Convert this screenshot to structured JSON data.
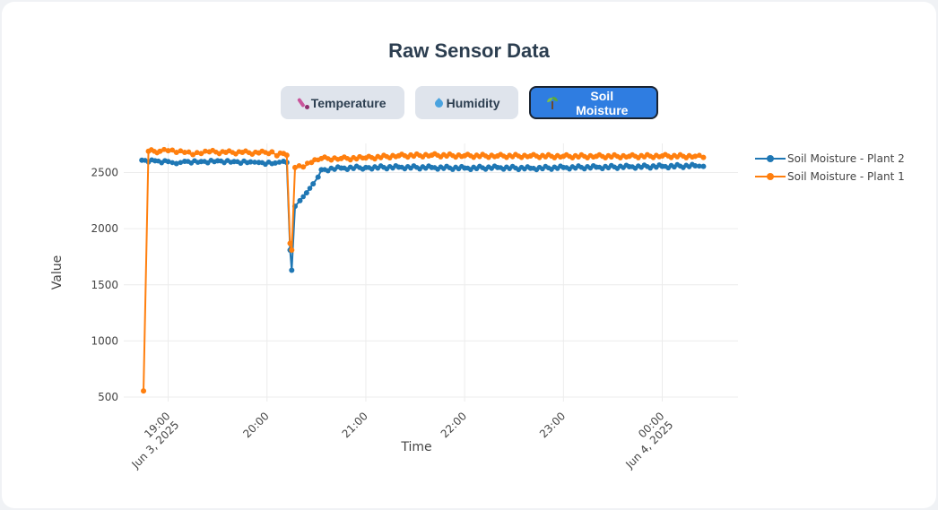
{
  "page": {
    "title": "Raw Sensor Data"
  },
  "tabs": [
    {
      "label": "Temperature",
      "icon": "thermometer-icon",
      "active": false
    },
    {
      "label": "Humidity",
      "icon": "droplet-icon",
      "active": false
    },
    {
      "label": "Soil Moisture",
      "icon": "seedling-icon",
      "active": true
    }
  ],
  "chart_data": {
    "type": "line",
    "title": "",
    "xlabel": "Time",
    "ylabel": "Value",
    "ylim": [
      460,
      2760
    ],
    "xlim": [
      "2025-06-03 18:33",
      "2025-06-04 00:46"
    ],
    "grid": true,
    "legend_position": "right",
    "y_ticks": [
      500,
      1000,
      1500,
      2000,
      2500
    ],
    "x_ticks": [
      {
        "time": "2025-06-03 19:00",
        "label": "19:00",
        "sublabel": "Jun 3, 2025"
      },
      {
        "time": "2025-06-03 20:00",
        "label": "20:00",
        "sublabel": ""
      },
      {
        "time": "2025-06-03 21:00",
        "label": "21:00",
        "sublabel": ""
      },
      {
        "time": "2025-06-03 22:00",
        "label": "22:00",
        "sublabel": ""
      },
      {
        "time": "2025-06-03 23:00",
        "label": "23:00",
        "sublabel": ""
      },
      {
        "time": "2025-06-04 00:00",
        "label": "00:00",
        "sublabel": "Jun 4, 2025"
      }
    ],
    "series": [
      {
        "name": "Soil Moisture - Plant 2",
        "color": "#1f77b4",
        "points": [
          [
            "2025-06-03 18:44",
            2610
          ],
          [
            "2025-06-03 18:52",
            2605
          ],
          [
            "2025-06-03 19:00",
            2598
          ],
          [
            "2025-06-03 19:05",
            2580
          ],
          [
            "2025-06-03 19:10",
            2600
          ],
          [
            "2025-06-03 19:20",
            2598
          ],
          [
            "2025-06-03 19:30",
            2605
          ],
          [
            "2025-06-03 19:40",
            2598
          ],
          [
            "2025-06-03 19:50",
            2595
          ],
          [
            "2025-06-03 19:55",
            2590
          ],
          [
            "2025-06-03 20:05",
            2585
          ],
          [
            "2025-06-03 20:10",
            2600
          ],
          [
            "2025-06-03 20:12",
            2590
          ],
          [
            "2025-06-03 20:14",
            1810
          ],
          [
            "2025-06-03 20:15",
            1630
          ],
          [
            "2025-06-03 20:17",
            2200
          ],
          [
            "2025-06-03 20:20",
            2250
          ],
          [
            "2025-06-03 20:24",
            2320
          ],
          [
            "2025-06-03 20:28",
            2400
          ],
          [
            "2025-06-03 20:31",
            2460
          ],
          [
            "2025-06-03 20:33",
            2525
          ],
          [
            "2025-06-03 20:45",
            2540
          ],
          [
            "2025-06-03 21:00",
            2545
          ],
          [
            "2025-06-03 21:20",
            2548
          ],
          [
            "2025-06-03 21:40",
            2545
          ],
          [
            "2025-06-03 22:00",
            2540
          ],
          [
            "2025-06-03 22:20",
            2545
          ],
          [
            "2025-06-03 22:40",
            2538
          ],
          [
            "2025-06-03 23:00",
            2545
          ],
          [
            "2025-06-03 23:20",
            2548
          ],
          [
            "2025-06-03 23:40",
            2552
          ],
          [
            "2025-06-04 00:00",
            2555
          ],
          [
            "2025-06-04 00:20",
            2560
          ],
          [
            "2025-06-04 00:25",
            2555
          ]
        ]
      },
      {
        "name": "Soil Moisture - Plant 1",
        "color": "#ff7f0e",
        "points": [
          [
            "2025-06-03 18:45",
            555
          ],
          [
            "2025-06-03 18:48",
            2690
          ],
          [
            "2025-06-03 18:55",
            2690
          ],
          [
            "2025-06-03 19:00",
            2695
          ],
          [
            "2025-06-03 19:05",
            2680
          ],
          [
            "2025-06-03 19:10",
            2680
          ],
          [
            "2025-06-03 19:15",
            2660
          ],
          [
            "2025-06-03 19:20",
            2670
          ],
          [
            "2025-06-03 19:25",
            2685
          ],
          [
            "2025-06-03 19:35",
            2680
          ],
          [
            "2025-06-03 19:45",
            2680
          ],
          [
            "2025-06-03 19:55",
            2675
          ],
          [
            "2025-06-03 20:03",
            2685
          ],
          [
            "2025-06-03 20:06",
            2650
          ],
          [
            "2025-06-03 20:10",
            2670
          ],
          [
            "2025-06-03 20:12",
            2655
          ],
          [
            "2025-06-03 20:14",
            1870
          ],
          [
            "2025-06-03 20:15",
            1810
          ],
          [
            "2025-06-03 20:17",
            2545
          ],
          [
            "2025-06-03 20:22",
            2550
          ],
          [
            "2025-06-03 20:27",
            2590
          ],
          [
            "2025-06-03 20:33",
            2625
          ],
          [
            "2025-06-03 20:45",
            2625
          ],
          [
            "2025-06-03 21:00",
            2630
          ],
          [
            "2025-06-03 21:20",
            2650
          ],
          [
            "2025-06-03 21:40",
            2655
          ],
          [
            "2025-06-03 22:00",
            2650
          ],
          [
            "2025-06-03 22:20",
            2648
          ],
          [
            "2025-06-03 22:40",
            2648
          ],
          [
            "2025-06-03 23:00",
            2645
          ],
          [
            "2025-06-03 23:20",
            2645
          ],
          [
            "2025-06-03 23:40",
            2645
          ],
          [
            "2025-06-04 00:00",
            2648
          ],
          [
            "2025-06-04 00:20",
            2645
          ],
          [
            "2025-06-04 00:25",
            2635
          ]
        ]
      }
    ]
  }
}
